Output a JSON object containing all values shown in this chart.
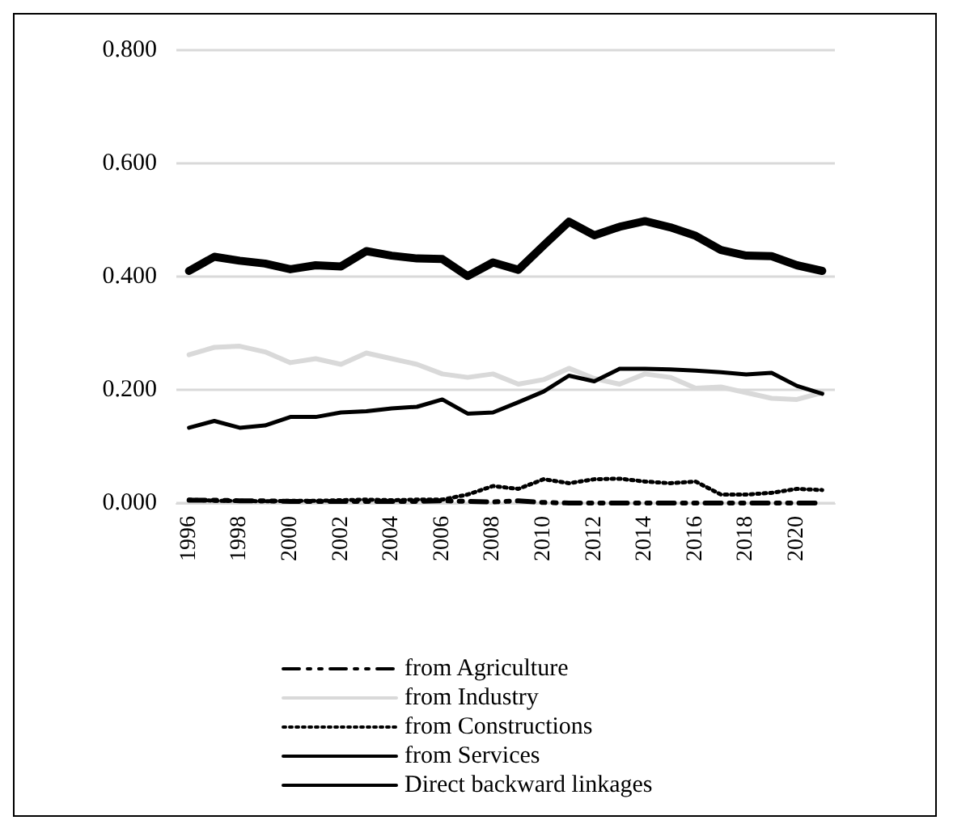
{
  "chart_data": {
    "type": "line",
    "categories": [
      "1996",
      null,
      "1998",
      null,
      "2000",
      null,
      "2002",
      null,
      "2004",
      null,
      "2006",
      null,
      "2008",
      null,
      "2010",
      null,
      "2012",
      null,
      "2014",
      null,
      "2016",
      null,
      "2018",
      null,
      "2020",
      null
    ],
    "ylim": [
      0,
      0.8
    ],
    "yticks": [
      {
        "value": 0,
        "label": "0.000"
      },
      {
        "value": 0.2,
        "label": "0.200"
      },
      {
        "value": 0.4,
        "label": "0.400"
      },
      {
        "value": 0.6,
        "label": "0.600"
      },
      {
        "value": 0.8,
        "label": "0.800"
      }
    ],
    "grid": "y",
    "legend": "bottom",
    "marker": "none",
    "series": [
      {
        "name": "from Agriculture",
        "color": "#000000",
        "line_style": "dashed",
        "values": [
          0.005,
          0.005,
          0.004,
          0.004,
          0.003,
          0.003,
          0.003,
          0.003,
          0.003,
          0.003,
          0.004,
          0.003,
          0.002,
          0.004,
          0.001,
          0,
          0,
          0,
          0,
          0,
          0,
          0,
          0,
          0,
          0,
          0
        ]
      },
      {
        "name": "from Industry",
        "color": "#d9d9d9",
        "line_style": "solid",
        "values": [
          0.262,
          0.275,
          0.277,
          0.267,
          0.248,
          0.255,
          0.245,
          0.265,
          0.255,
          0.245,
          0.228,
          0.222,
          0.228,
          0.21,
          0.218,
          0.238,
          0.22,
          0.21,
          0.228,
          0.222,
          0.203,
          0.205,
          0.195,
          0.185,
          0.183,
          0.195
        ]
      },
      {
        "name": "from Constructions",
        "color": "#000000",
        "line_style": "dotted",
        "values": [
          0.006,
          0.004,
          0.004,
          0.003,
          0.004,
          0.004,
          0.005,
          0.006,
          0.005,
          0.006,
          0.006,
          0.015,
          0.03,
          0.025,
          0.042,
          0.035,
          0.042,
          0.043,
          0.038,
          0.035,
          0.038,
          0.015,
          0.015,
          0.018,
          0.025,
          0.023
        ]
      },
      {
        "name": "from Services",
        "color": "#000000",
        "line_style": "solid",
        "values": [
          0.133,
          0.145,
          0.133,
          0.137,
          0.152,
          0.152,
          0.16,
          0.162,
          0.167,
          0.17,
          0.183,
          0.158,
          0.16,
          0.178,
          0.197,
          0.225,
          0.215,
          0.237,
          0.237,
          0.236,
          0.234,
          0.231,
          0.227,
          0.23,
          0.207,
          0.193
        ]
      },
      {
        "name": "Direct backward linkages",
        "color": "#000000",
        "line_style": "solid",
        "values": [
          0.41,
          0.435,
          0.428,
          0.423,
          0.413,
          0.42,
          0.418,
          0.445,
          0.437,
          0.432,
          0.431,
          0.401,
          0.425,
          0.412,
          0.455,
          0.497,
          0.473,
          0.488,
          0.498,
          0.487,
          0.472,
          0.447,
          0.437,
          0.436,
          0.42,
          0.41
        ]
      }
    ]
  }
}
